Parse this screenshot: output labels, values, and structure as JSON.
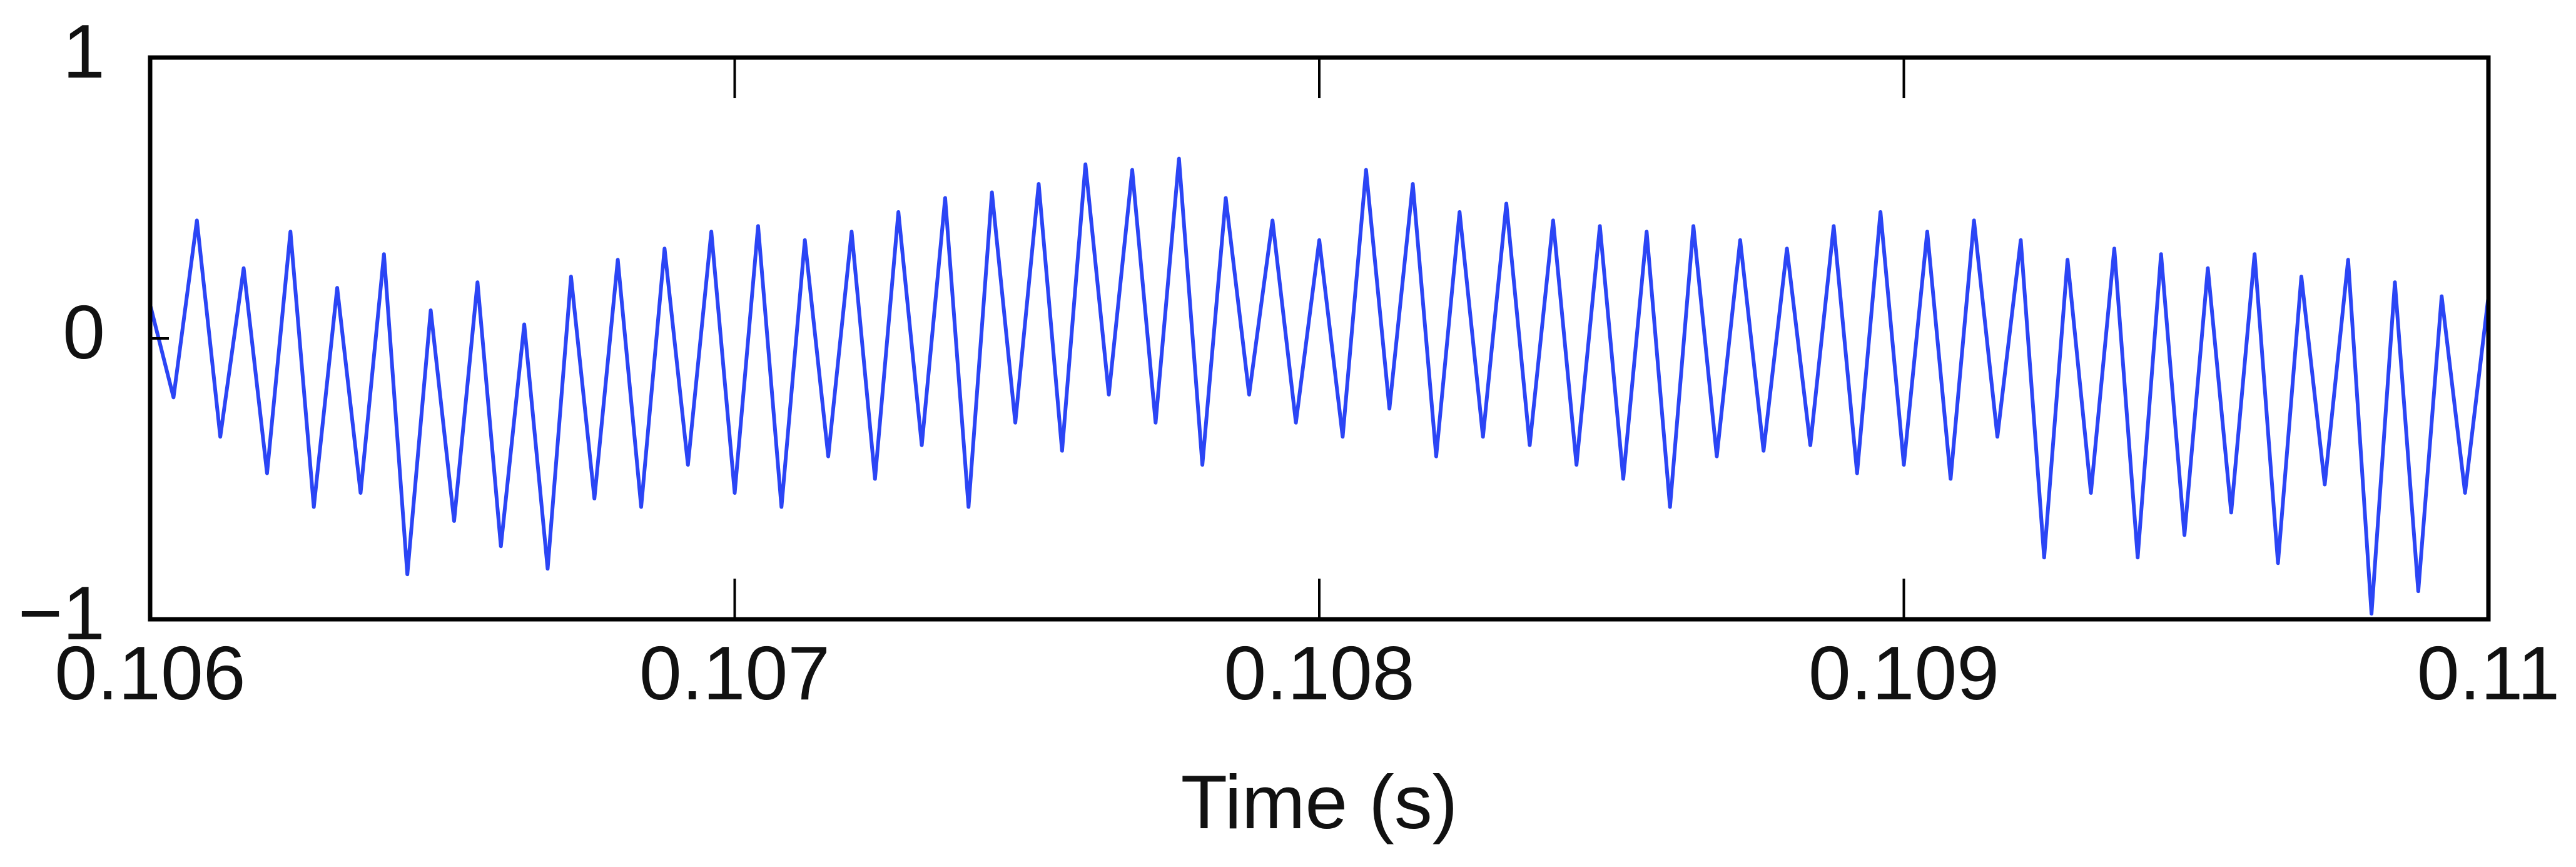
{
  "chart_data": {
    "type": "line",
    "x_label": "Time (s)",
    "xlim": [
      0.106,
      0.11
    ],
    "xticks": [
      0.106,
      0.107,
      0.108,
      0.109,
      0.11
    ],
    "ylim": [
      -1,
      1
    ],
    "yticks": [
      {
        "value": -1,
        "label": "−1"
      },
      0,
      1
    ],
    "color": "#2b45f5",
    "x": [
      0.106,
      0.10604,
      0.10608,
      0.10612,
      0.10616,
      0.1062,
      0.10624,
      0.10628,
      0.10632,
      0.10636,
      0.1064,
      0.10644,
      0.10648,
      0.10652,
      0.10656,
      0.1066,
      0.10664,
      0.10668,
      0.10672,
      0.10676,
      0.1068,
      0.10684,
      0.10688,
      0.10692,
      0.10696,
      0.107,
      0.10704,
      0.10708,
      0.10712,
      0.10716,
      0.1072,
      0.10724,
      0.10728,
      0.10732,
      0.10736,
      0.1074,
      0.10744,
      0.10748,
      0.10752,
      0.10756,
      0.1076,
      0.10764,
      0.10768,
      0.10772,
      0.10776,
      0.1078,
      0.10784,
      0.10788,
      0.10792,
      0.10796,
      0.108,
      0.10804,
      0.10808,
      0.10812,
      0.10816,
      0.1082,
      0.10824,
      0.10828,
      0.10832,
      0.10836,
      0.1084,
      0.10844,
      0.10848,
      0.10852,
      0.10856,
      0.1086,
      0.10864,
      0.10868,
      0.10872,
      0.10876,
      0.1088,
      0.10884,
      0.10888,
      0.10892,
      0.10896,
      0.109,
      0.10904,
      0.10908,
      0.10912,
      0.10916,
      0.1092,
      0.10924,
      0.10928,
      0.10932,
      0.10936,
      0.1094,
      0.10944,
      0.10948,
      0.10952,
      0.10956,
      0.1096,
      0.10964,
      0.10968,
      0.10972,
      0.10976,
      0.1098,
      0.10984,
      0.10988,
      0.10992,
      0.10996,
      0.11
    ],
    "values": [
      0.12,
      -0.21,
      0.42,
      -0.35,
      0.25,
      -0.48,
      0.38,
      -0.6,
      0.18,
      -0.55,
      0.3,
      -0.84,
      0.1,
      -0.65,
      0.2,
      -0.74,
      0.05,
      -0.82,
      0.22,
      -0.57,
      0.28,
      -0.6,
      0.32,
      -0.45,
      0.38,
      -0.55,
      0.4,
      -0.6,
      0.35,
      -0.42,
      0.38,
      -0.5,
      0.45,
      -0.38,
      0.5,
      -0.6,
      0.52,
      -0.3,
      0.55,
      -0.4,
      0.62,
      -0.2,
      0.6,
      -0.3,
      0.64,
      -0.45,
      0.5,
      -0.2,
      0.42,
      -0.3,
      0.35,
      -0.35,
      0.6,
      -0.25,
      0.55,
      -0.42,
      0.45,
      -0.35,
      0.48,
      -0.38,
      0.42,
      -0.45,
      0.4,
      -0.5,
      0.38,
      -0.6,
      0.4,
      -0.42,
      0.35,
      -0.4,
      0.32,
      -0.38,
      0.4,
      -0.48,
      0.45,
      -0.45,
      0.38,
      -0.5,
      0.42,
      -0.35,
      0.35,
      -0.78,
      0.28,
      -0.55,
      0.32,
      -0.78,
      0.3,
      -0.7,
      0.25,
      -0.62,
      0.3,
      -0.8,
      0.22,
      -0.52,
      0.28,
      -0.98,
      0.2,
      -0.9,
      0.15,
      -0.55,
      0.15
    ]
  }
}
